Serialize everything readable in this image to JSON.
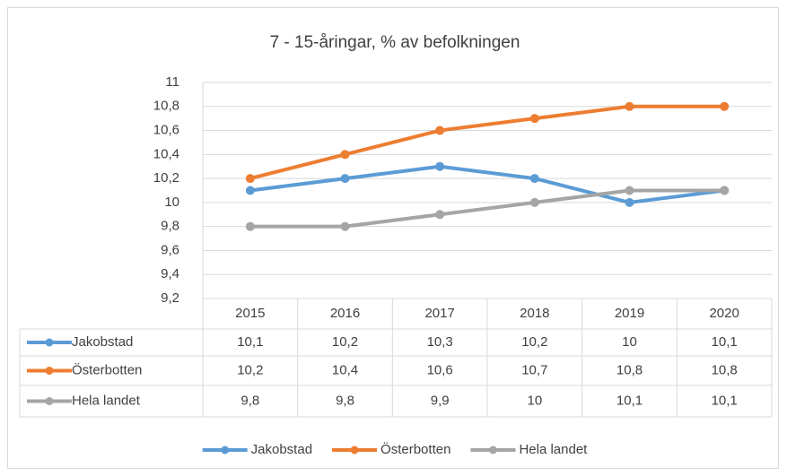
{
  "chart_data": {
    "type": "line",
    "title": "7 - 15-åringar, % av befolkningen",
    "categories": [
      "2015",
      "2016",
      "2017",
      "2018",
      "2019",
      "2020"
    ],
    "series": [
      {
        "name": "Jakobstad",
        "color": "#5b9bd5",
        "values": [
          10.1,
          10.2,
          10.3,
          10.2,
          10,
          10.1
        ],
        "value_labels": [
          "10,1",
          "10,2",
          "10,3",
          "10,2",
          "10",
          "10,1"
        ]
      },
      {
        "name": "Österbotten",
        "color": "#ed7d31",
        "values": [
          10.2,
          10.4,
          10.6,
          10.7,
          10.8,
          10.8
        ],
        "value_labels": [
          "10,2",
          "10,4",
          "10,6",
          "10,7",
          "10,8",
          "10,8"
        ]
      },
      {
        "name": "Hela landet",
        "color": "#a5a5a5",
        "values": [
          9.8,
          9.8,
          9.9,
          10,
          10.1,
          10.1
        ],
        "value_labels": [
          "9,8",
          "9,8",
          "9,9",
          "10",
          "10,1",
          "10,1"
        ]
      }
    ],
    "ylim": [
      9.2,
      11
    ],
    "yticks": [
      {
        "value": 9.2,
        "label": "9,2"
      },
      {
        "value": 9.4,
        "label": "9,4"
      },
      {
        "value": 9.6,
        "label": "9,6"
      },
      {
        "value": 9.8,
        "label": "9,8"
      },
      10,
      {
        "value": 10.2,
        "label": "10,2"
      },
      {
        "value": 10.4,
        "label": "10,4"
      },
      {
        "value": 10.6,
        "label": "10,6"
      },
      {
        "value": 10.8,
        "label": "10,8"
      },
      11
    ],
    "grid": true,
    "legend": "bottom",
    "data_table": true
  }
}
